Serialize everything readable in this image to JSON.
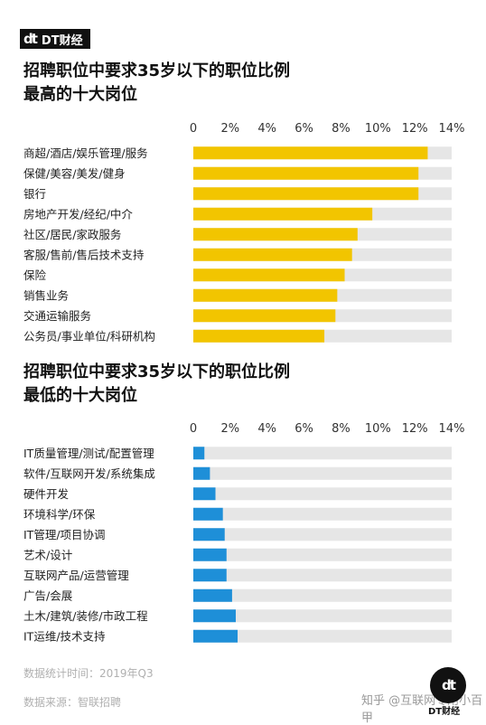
{
  "header": {
    "logo_mark": "dt",
    "logo_text": "DT财经"
  },
  "chart_data": [
    {
      "type": "bar",
      "orientation": "horizontal",
      "title_line1": "招聘职位中要求35岁以下的职位比例",
      "title_line2": "最高的十大岗位",
      "categories": [
        "商超/酒店/娱乐管理/服务",
        "保健/美容/美发/健身",
        "银行",
        "房地产开发/经纪/中介",
        "社区/居民/家政服务",
        "客服/售前/售后技术支持",
        "保险",
        "销售业务",
        "交通运输服务",
        "公务员/事业单位/科研机构"
      ],
      "values": [
        12.7,
        12.2,
        12.2,
        9.7,
        8.9,
        8.6,
        8.2,
        7.8,
        7.7,
        7.1
      ],
      "xlim": [
        0,
        14
      ],
      "ticks": [
        0,
        2,
        4,
        6,
        8,
        10,
        12,
        14
      ],
      "tick_labels": [
        "0",
        "2%",
        "4%",
        "6%",
        "8%",
        "10%",
        "12%",
        "14%"
      ],
      "bar_color": "#f2c500",
      "track_color": "#e6e6e6"
    },
    {
      "type": "bar",
      "orientation": "horizontal",
      "title_line1": "招聘职位中要求35岁以下的职位比例",
      "title_line2": "最低的十大岗位",
      "categories": [
        "IT质量管理/测试/配置管理",
        "软件/互联网开发/系统集成",
        "硬件开发",
        "环境科学/环保",
        "IT管理/项目协调",
        "艺术/设计",
        "互联网产品/运营管理",
        "广告/会展",
        "土木/建筑/装修/市政工程",
        "IT运维/技术支持"
      ],
      "values": [
        0.6,
        0.9,
        1.2,
        1.6,
        1.7,
        1.8,
        1.8,
        2.1,
        2.3,
        2.4
      ],
      "xlim": [
        0,
        14
      ],
      "ticks": [
        0,
        2,
        4,
        6,
        8,
        10,
        12,
        14
      ],
      "tick_labels": [
        "0",
        "2%",
        "4%",
        "6%",
        "8%",
        "10%",
        "12%",
        "14%"
      ],
      "bar_color": "#1e8fd8",
      "track_color": "#e6e6e6"
    }
  ],
  "footer": {
    "stat_time": "数据统计时间：2019年Q3",
    "source": "数据来源：智联招聘",
    "brand_mark": "dt",
    "brand_label": "DT财经",
    "watermark": "知乎 @互联网专用小百甲"
  }
}
